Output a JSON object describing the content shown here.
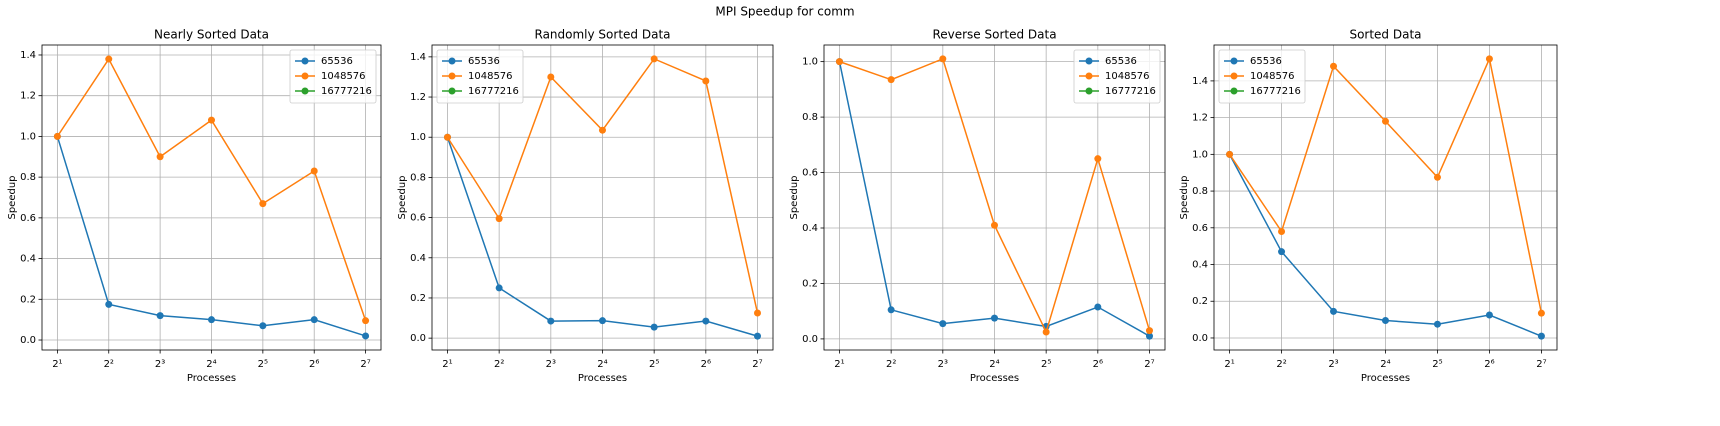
{
  "title": "MPI Speedup for comm",
  "chart_data": [
    {
      "type": "line",
      "title": "Nearly Sorted Data",
      "xlabel": "Processes",
      "ylabel": "Speedup",
      "x": [
        2,
        4,
        8,
        16,
        32,
        64,
        128
      ],
      "xscale": "log",
      "xlim": [
        1.625,
        157.6
      ],
      "xticks": [
        {
          "value": 2,
          "label": "2¹"
        },
        {
          "value": 4,
          "label": "2²"
        },
        {
          "value": 8,
          "label": "2³"
        },
        {
          "value": 16,
          "label": "2⁴"
        },
        {
          "value": 32,
          "label": "2⁵"
        },
        {
          "value": 64,
          "label": "2⁶"
        },
        {
          "value": 128,
          "label": "2⁷"
        }
      ],
      "ylim": [
        -0.049,
        1.449
      ],
      "yticks": [
        {
          "value": 0,
          "label": "0.0"
        },
        0.2,
        0.4,
        0.6,
        0.8,
        {
          "value": 1,
          "label": "1.0"
        },
        1.2,
        1.4
      ],
      "grid": true,
      "legend_loc": "upper right",
      "series": [
        {
          "name": "65536",
          "color": "#1f77b4",
          "values": [
            1.0,
            0.175,
            0.12,
            0.1,
            0.07,
            0.1,
            0.02
          ]
        },
        {
          "name": "1048576",
          "color": "#ff7f0e",
          "values": [
            1.0,
            1.38,
            0.9,
            1.08,
            0.67,
            0.83,
            0.095
          ]
        },
        {
          "name": "16777216",
          "color": "#2ca02c",
          "values": [
            null,
            null,
            null,
            null,
            null,
            null,
            null
          ]
        }
      ]
    },
    {
      "type": "line",
      "title": "Randomly Sorted Data",
      "xlabel": "Processes",
      "ylabel": "Speedup",
      "x": [
        2,
        4,
        8,
        16,
        32,
        64,
        128
      ],
      "xscale": "log",
      "xlim": [
        1.625,
        157.6
      ],
      "xticks": [
        {
          "value": 2,
          "label": "2¹"
        },
        {
          "value": 4,
          "label": "2²"
        },
        {
          "value": 8,
          "label": "2³"
        },
        {
          "value": 16,
          "label": "2⁴"
        },
        {
          "value": 32,
          "label": "2⁵"
        },
        {
          "value": 64,
          "label": "2⁶"
        },
        {
          "value": 128,
          "label": "2⁷"
        }
      ],
      "ylim": [
        -0.059,
        1.459
      ],
      "yticks": [
        {
          "value": 0,
          "label": "0.0"
        },
        0.2,
        0.4,
        0.6,
        0.8,
        {
          "value": 1,
          "label": "1.0"
        },
        1.2,
        1.4
      ],
      "grid": true,
      "legend_loc": "upper left",
      "series": [
        {
          "name": "65536",
          "color": "#1f77b4",
          "values": [
            1.0,
            0.25,
            0.085,
            0.087,
            0.055,
            0.085,
            0.01
          ]
        },
        {
          "name": "1048576",
          "color": "#ff7f0e",
          "values": [
            1.0,
            0.595,
            1.3,
            1.035,
            1.39,
            1.28,
            0.125
          ]
        },
        {
          "name": "16777216",
          "color": "#2ca02c",
          "values": [
            null,
            null,
            null,
            null,
            null,
            null,
            null
          ]
        }
      ]
    },
    {
      "type": "line",
      "title": "Reverse Sorted Data",
      "xlabel": "Processes",
      "ylabel": "Speedup",
      "x": [
        2,
        4,
        8,
        16,
        32,
        64,
        128
      ],
      "xscale": "log",
      "xlim": [
        1.625,
        157.6
      ],
      "xticks": [
        {
          "value": 2,
          "label": "2¹"
        },
        {
          "value": 4,
          "label": "2²"
        },
        {
          "value": 8,
          "label": "2³"
        },
        {
          "value": 16,
          "label": "2⁴"
        },
        {
          "value": 32,
          "label": "2⁵"
        },
        {
          "value": 64,
          "label": "2⁶"
        },
        {
          "value": 128,
          "label": "2⁷"
        }
      ],
      "ylim": [
        -0.04,
        1.06
      ],
      "yticks": [
        {
          "value": 0,
          "label": "0.0"
        },
        0.2,
        0.4,
        0.6,
        0.8,
        {
          "value": 1,
          "label": "1.0"
        }
      ],
      "grid": true,
      "legend_loc": "upper right",
      "series": [
        {
          "name": "65536",
          "color": "#1f77b4",
          "values": [
            1.0,
            0.105,
            0.055,
            0.075,
            0.045,
            0.115,
            0.01
          ]
        },
        {
          "name": "1048576",
          "color": "#ff7f0e",
          "values": [
            1.0,
            0.935,
            1.01,
            0.41,
            0.025,
            0.65,
            0.03
          ]
        },
        {
          "name": "16777216",
          "color": "#2ca02c",
          "values": [
            null,
            null,
            null,
            null,
            null,
            null,
            null
          ]
        }
      ]
    },
    {
      "type": "line",
      "title": "Sorted Data",
      "xlabel": "Processes",
      "ylabel": "Speedup",
      "x": [
        2,
        4,
        8,
        16,
        32,
        64,
        128
      ],
      "xscale": "log",
      "xlim": [
        1.625,
        157.6
      ],
      "xticks": [
        {
          "value": 2,
          "label": "2¹"
        },
        {
          "value": 4,
          "label": "2²"
        },
        {
          "value": 8,
          "label": "2³"
        },
        {
          "value": 16,
          "label": "2⁴"
        },
        {
          "value": 32,
          "label": "2⁵"
        },
        {
          "value": 64,
          "label": "2⁶"
        },
        {
          "value": 128,
          "label": "2⁷"
        }
      ],
      "ylim": [
        -0.0655,
        1.5955
      ],
      "yticks": [
        {
          "value": 0,
          "label": "0.0"
        },
        0.2,
        0.4,
        0.6,
        0.8,
        {
          "value": 1,
          "label": "1.0"
        },
        1.2,
        1.4
      ],
      "grid": true,
      "legend_loc": "upper left",
      "series": [
        {
          "name": "65536",
          "color": "#1f77b4",
          "values": [
            1.0,
            0.47,
            0.145,
            0.095,
            0.075,
            0.125,
            0.01
          ]
        },
        {
          "name": "1048576",
          "color": "#ff7f0e",
          "values": [
            1.0,
            0.58,
            1.48,
            1.18,
            0.875,
            1.52,
            0.135
          ]
        },
        {
          "name": "16777216",
          "color": "#2ca02c",
          "values": [
            null,
            null,
            null,
            null,
            null,
            null,
            null
          ]
        }
      ]
    }
  ]
}
